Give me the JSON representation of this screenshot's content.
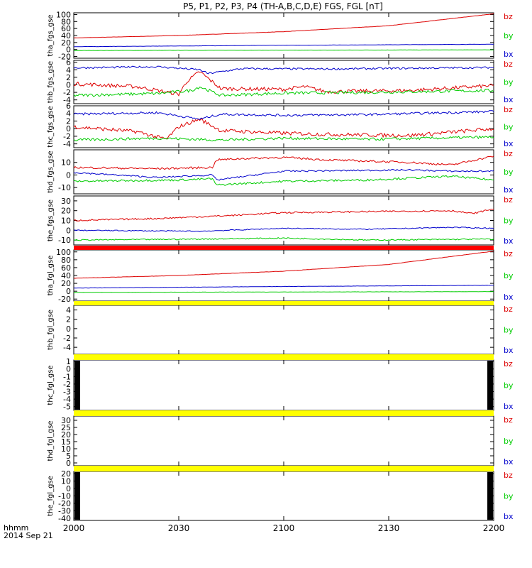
{
  "chart_data": {
    "type": "line",
    "title": "P5, P1, P2, P3, P4 (TH-A,B,C,D,E) FGS, FGL [nT]",
    "x_ticks": [
      "2000",
      "2030",
      "2100",
      "2130",
      "2200"
    ],
    "x_label_top": "hhmm",
    "x_label_bottom": "2014 Sep 21",
    "colors": {
      "bz": "#dd0000",
      "by": "#00cc00",
      "bx": "#0000cc",
      "bar_red": "#ff0000",
      "bar_yellow": "#ffff00"
    },
    "panels": [
      {
        "ylabel": "tha_fgs_gse",
        "ylim": [
          -25,
          105
        ],
        "yticks": [
          "100",
          "80",
          "60",
          "40",
          "20",
          "0",
          "-20"
        ],
        "legend": [
          "bz",
          "by",
          "bx"
        ],
        "bar_after": null,
        "series": [
          {
            "name": "bz",
            "x": [
              0,
              0.25,
              0.5,
              0.75,
              1
            ],
            "values": [
              33,
              40,
              51,
              68,
              102
            ],
            "noise": 0.3
          },
          {
            "name": "by",
            "x": [
              0,
              0.5,
              1
            ],
            "values": [
              -3,
              -2,
              -1
            ],
            "noise": 0.3
          },
          {
            "name": "bx",
            "x": [
              0,
              0.5,
              1
            ],
            "values": [
              8,
              12,
              15
            ],
            "noise": 0.3
          }
        ]
      },
      {
        "ylabel": "thb_fgs_gse",
        "ylim": [
          -5,
          6.5
        ],
        "yticks": [
          "6",
          "4",
          "2",
          "0",
          "-2",
          "-4"
        ],
        "legend": [
          "bz",
          "by",
          "bx"
        ],
        "bar_after": null,
        "series": [
          {
            "name": "bz",
            "x": [
              0,
              0.15,
              0.25,
              0.27,
              0.3,
              0.35,
              0.5,
              0.55,
              0.6,
              0.8,
              1
            ],
            "values": [
              0.3,
              -0.5,
              -2.5,
              1,
              3.5,
              -1,
              -1.2,
              -0.5,
              -1.8,
              -1.5,
              -0.2
            ],
            "noise": 0.5
          },
          {
            "name": "by",
            "x": [
              0,
              0.2,
              0.28,
              0.3,
              0.35,
              0.5,
              0.7,
              1
            ],
            "values": [
              -2.8,
              -2.3,
              -1.5,
              -0.5,
              -2.8,
              -2.2,
              -2,
              -1.5
            ],
            "noise": 0.4
          },
          {
            "name": "bx",
            "x": [
              0,
              0.2,
              0.3,
              0.32,
              0.4,
              0.6,
              0.8,
              1
            ],
            "values": [
              4.5,
              4.8,
              4,
              3,
              4.3,
              4.2,
              4.4,
              4.6
            ],
            "noise": 0.25
          }
        ]
      },
      {
        "ylabel": "thc_fgs_gse",
        "ylim": [
          -5,
          6
        ],
        "yticks": [
          "6",
          "4",
          "2",
          "0",
          "-2",
          "-4"
        ],
        "legend": [
          "bz",
          "by",
          "bx"
        ],
        "bar_after": null,
        "series": [
          {
            "name": "bz",
            "x": [
              0,
              0.15,
              0.22,
              0.25,
              0.3,
              0.35,
              0.5,
              0.6,
              0.8,
              1
            ],
            "values": [
              0.5,
              -0.8,
              -2.8,
              0.5,
              2.5,
              -0.5,
              -1.2,
              -1.5,
              -1.8,
              0
            ],
            "noise": 0.5
          },
          {
            "name": "by",
            "x": [
              0,
              0.2,
              0.35,
              0.5,
              0.7,
              1
            ],
            "values": [
              -3,
              -2.5,
              -3,
              -2.5,
              -2.8,
              -2.2
            ],
            "noise": 0.35
          },
          {
            "name": "bx",
            "x": [
              0,
              0.2,
              0.3,
              0.35,
              0.5,
              0.7,
              1
            ],
            "values": [
              3.8,
              4.2,
              2.5,
              3.8,
              3.5,
              3.7,
              4.5
            ],
            "noise": 0.3
          }
        ]
      },
      {
        "ylabel": "thd_fgs_gse",
        "ylim": [
          -15,
          20
        ],
        "yticks": [
          "10",
          "0",
          "-10"
        ],
        "legend": [
          "bz",
          "by",
          "bx"
        ],
        "bar_after": null,
        "series": [
          {
            "name": "bz",
            "x": [
              0,
              0.2,
              0.33,
              0.34,
              0.4,
              0.5,
              0.6,
              0.8,
              0.9,
              1
            ],
            "values": [
              6,
              5,
              6,
              12,
              13,
              14,
              12,
              10,
              8,
              15
            ],
            "noise": 0.8
          },
          {
            "name": "by",
            "x": [
              0,
              0.25,
              0.33,
              0.34,
              0.5,
              0.7,
              0.9,
              1
            ],
            "values": [
              -5,
              -4,
              -3,
              -8,
              -5,
              -4,
              -1,
              -4
            ],
            "noise": 0.8
          },
          {
            "name": "bx",
            "x": [
              0,
              0.2,
              0.33,
              0.34,
              0.5,
              0.8,
              0.9,
              1
            ],
            "values": [
              2,
              -2,
              0,
              -4,
              3,
              4,
              3,
              3
            ],
            "noise": 0.6
          }
        ]
      },
      {
        "ylabel": "the_fgs_gse",
        "ylim": [
          -15,
          35
        ],
        "yticks": [
          "30",
          "20",
          "10",
          "0",
          "-10"
        ],
        "legend": [
          "bz",
          "by",
          "bx"
        ],
        "bar_after": "red",
        "series": [
          {
            "name": "bz",
            "x": [
              0,
              0.2,
              0.37,
              0.5,
              0.7,
              0.9,
              0.95,
              1
            ],
            "values": [
              10,
              12,
              15,
              18,
              19,
              20,
              17,
              22
            ],
            "noise": 0.8
          },
          {
            "name": "by",
            "x": [
              0,
              0.3,
              0.5,
              0.7,
              1
            ],
            "values": [
              -10,
              -9,
              -8,
              -10,
              -9
            ],
            "noise": 0.6
          },
          {
            "name": "bx",
            "x": [
              0,
              0.3,
              0.5,
              0.7,
              0.9,
              1
            ],
            "values": [
              0,
              -1,
              2,
              1,
              3,
              2
            ],
            "noise": 0.5
          }
        ]
      },
      {
        "ylabel": "tha_fgl_gse",
        "ylim": [
          -25,
          105
        ],
        "yticks": [
          "100",
          "80",
          "60",
          "40",
          "20",
          "0",
          "-20"
        ],
        "legend": [
          "bz",
          "by",
          "bx"
        ],
        "bar_after": "yellow",
        "series": [
          {
            "name": "bz",
            "x": [
              0,
              0.25,
              0.5,
              0.75,
              1
            ],
            "values": [
              33,
              40,
              51,
              68,
              102
            ],
            "noise": 0.3
          },
          {
            "name": "by",
            "x": [
              0,
              0.5,
              1
            ],
            "values": [
              -3,
              -2,
              -1
            ],
            "noise": 0.3
          },
          {
            "name": "bx",
            "x": [
              0,
              0.5,
              1
            ],
            "values": [
              8,
              12,
              15
            ],
            "noise": 0.3
          }
        ]
      },
      {
        "ylabel": "thb_fgl_gse",
        "ylim": [
          -5.5,
          5
        ],
        "yticks": [
          "4",
          "2",
          "0",
          "-2",
          "-4"
        ],
        "legend": [
          "bz",
          "by",
          "bx"
        ],
        "bar_after": "yellow",
        "series": []
      },
      {
        "ylabel": "thc_fgl_gse",
        "ylim": [
          -5.5,
          1.2
        ],
        "yticks": [
          "1",
          "0",
          "-1",
          "-2",
          "-3",
          "-4",
          "-5"
        ],
        "legend": [
          "bz",
          "by",
          "bx"
        ],
        "bar_after": "yellow",
        "series": [],
        "black_edges": true
      },
      {
        "ylabel": "thd_fgl_gse",
        "ylim": [
          -2,
          33
        ],
        "yticks": [
          "30",
          "25",
          "20",
          "15",
          "10",
          "5",
          "0"
        ],
        "legend": [
          "bz",
          "by",
          "bx"
        ],
        "bar_after": "yellow",
        "series": []
      },
      {
        "ylabel": "the_fgl_gse",
        "ylim": [
          -43,
          23
        ],
        "yticks": [
          "20",
          "10",
          "0",
          "-10",
          "-20",
          "-30",
          "-40"
        ],
        "legend": [
          "bz",
          "by",
          "bx"
        ],
        "bar_after": null,
        "series": [],
        "black_edges": true
      }
    ]
  }
}
